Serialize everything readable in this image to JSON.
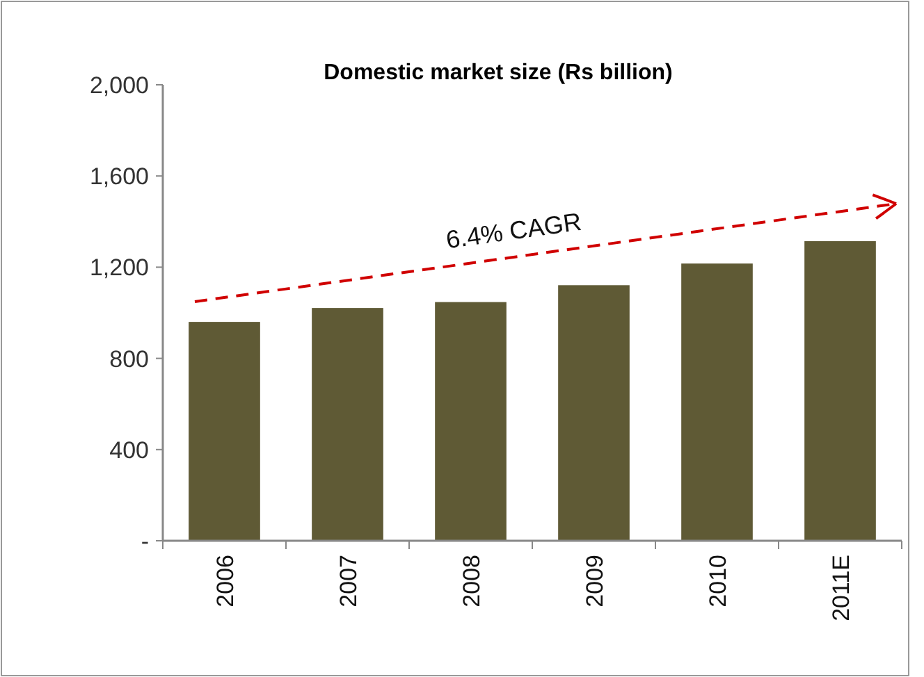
{
  "chart_data": {
    "type": "bar",
    "title": "Domestic market size (Rs billion)",
    "categories": [
      "2006",
      "2007",
      "2008",
      "2009",
      "2010",
      "2011E"
    ],
    "values": [
      960,
      1021,
      1047,
      1121,
      1216,
      1314
    ],
    "color": "#5f5a35",
    "ylim": [
      0,
      2000
    ],
    "yticks": [
      {
        "value": 0,
        "label": "-"
      },
      {
        "value": 400,
        "label": "400"
      },
      {
        "value": 800,
        "label": "800"
      },
      {
        "value": 1200,
        "label": "1,200"
      },
      {
        "value": 1600,
        "label": "1,600"
      },
      {
        "value": 2000,
        "label": "2,000"
      }
    ],
    "grid": false,
    "annotations": [
      "6.4% CAGR"
    ]
  }
}
